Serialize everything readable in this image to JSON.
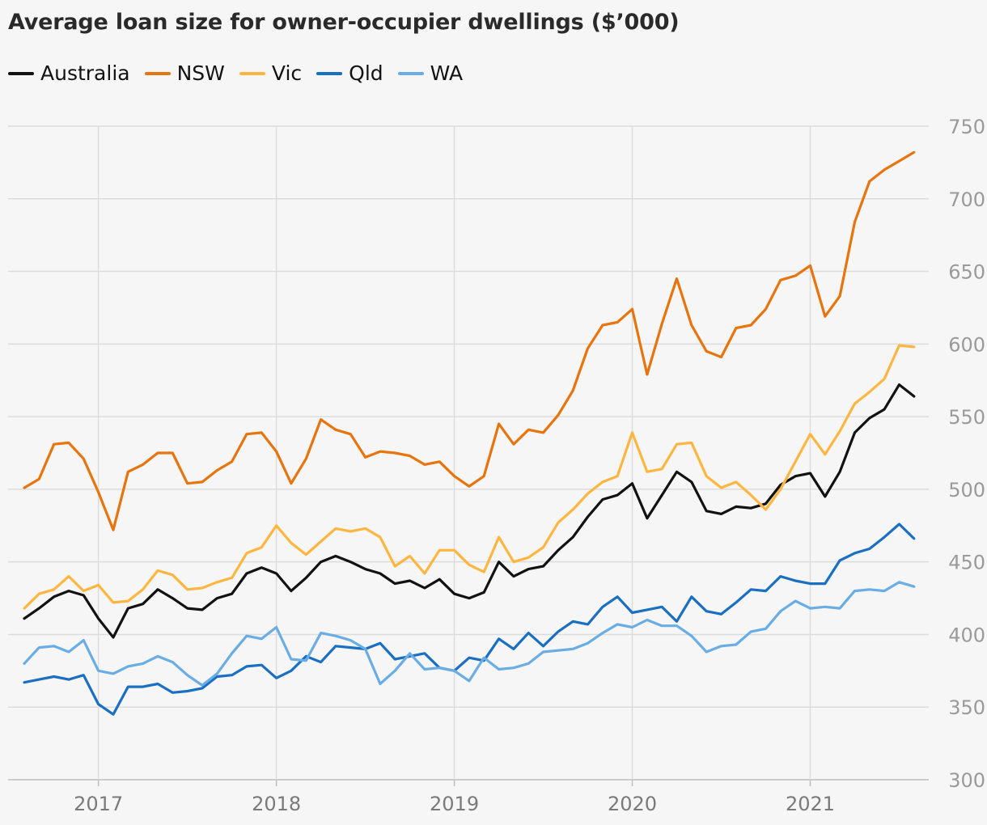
{
  "chart_data": {
    "type": "line",
    "title": "Average loan size for owner-occupier dwellings ($’000)",
    "xlabel": "",
    "ylabel": "",
    "x_start": "2016-08",
    "x_ticks": [
      "2017",
      "2018",
      "2019",
      "2020",
      "2021"
    ],
    "y_ticks": [
      300,
      350,
      400,
      450,
      500,
      550,
      600,
      650,
      700,
      750
    ],
    "ylim": [
      300,
      750
    ],
    "grid": true,
    "y_axis_side": "right",
    "legend_position": "top-left",
    "series": [
      {
        "name": "Australia",
        "color": "#121212",
        "values": [
          411,
          418,
          426,
          430,
          427,
          411,
          398,
          418,
          421,
          431,
          425,
          418,
          417,
          425,
          428,
          442,
          446,
          442,
          430,
          439,
          450,
          454,
          450,
          445,
          442,
          435,
          437,
          432,
          438,
          428,
          425,
          429,
          450,
          440,
          445,
          447,
          458,
          467,
          481,
          493,
          496,
          504,
          480,
          496,
          512,
          505,
          485,
          483,
          488,
          487,
          490,
          503,
          509,
          511,
          495,
          512,
          539,
          549,
          555,
          572,
          564
        ]
      },
      {
        "name": "NSW",
        "color": "#e8740e",
        "values": [
          501,
          507,
          531,
          532,
          521,
          498,
          472,
          512,
          517,
          525,
          525,
          504,
          505,
          513,
          519,
          538,
          539,
          526,
          504,
          521,
          548,
          541,
          538,
          522,
          526,
          525,
          523,
          517,
          519,
          509,
          502,
          509,
          545,
          531,
          541,
          539,
          551,
          568,
          597,
          613,
          615,
          624,
          579,
          614,
          645,
          613,
          595,
          591,
          611,
          613,
          624,
          644,
          647,
          654,
          619,
          633,
          684,
          712,
          720,
          726,
          732
        ]
      },
      {
        "name": "Vic",
        "color": "#ffb640",
        "values": [
          418,
          428,
          431,
          440,
          430,
          434,
          422,
          423,
          431,
          444,
          441,
          431,
          432,
          436,
          439,
          456,
          460,
          475,
          463,
          455,
          464,
          473,
          471,
          473,
          467,
          447,
          454,
          442,
          458,
          458,
          448,
          443,
          467,
          450,
          453,
          460,
          477,
          486,
          497,
          505,
          509,
          539,
          512,
          514,
          531,
          532,
          509,
          501,
          505,
          496,
          486,
          500,
          519,
          538,
          524,
          540,
          559,
          567,
          576,
          599,
          598
        ]
      },
      {
        "name": "Qld",
        "color": "#1a6fc2",
        "values": [
          367,
          369,
          371,
          369,
          372,
          352,
          345,
          364,
          364,
          366,
          360,
          361,
          363,
          371,
          372,
          378,
          379,
          370,
          375,
          385,
          381,
          392,
          391,
          390,
          394,
          383,
          385,
          387,
          377,
          375,
          384,
          382,
          397,
          390,
          401,
          392,
          402,
          409,
          407,
          419,
          426,
          415,
          417,
          419,
          409,
          426,
          416,
          414,
          422,
          431,
          430,
          440,
          437,
          435,
          435,
          451,
          456,
          459,
          467,
          476,
          466
        ]
      },
      {
        "name": "WA",
        "color": "#6aade4",
        "values": [
          380,
          391,
          392,
          388,
          396,
          375,
          373,
          378,
          380,
          385,
          381,
          372,
          365,
          373,
          387,
          399,
          397,
          405,
          383,
          382,
          401,
          399,
          396,
          390,
          366,
          375,
          387,
          376,
          377,
          375,
          368,
          384,
          376,
          377,
          380,
          388,
          389,
          390,
          394,
          401,
          407,
          405,
          410,
          406,
          406,
          399,
          388,
          392,
          393,
          402,
          404,
          416,
          423,
          418,
          419,
          418,
          430,
          431,
          430,
          436,
          433
        ]
      }
    ]
  }
}
